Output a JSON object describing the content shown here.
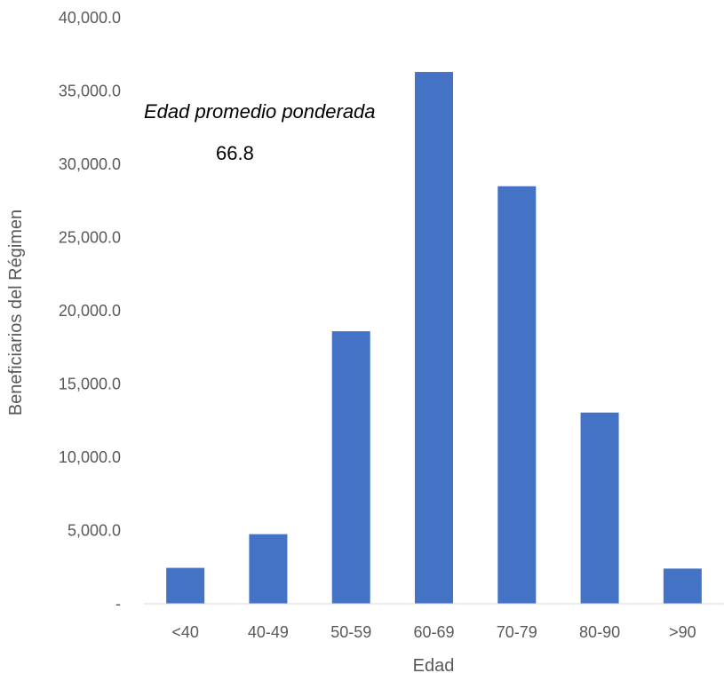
{
  "chart_data": {
    "type": "bar",
    "categories": [
      "<40",
      "40-49",
      "50-59",
      "60-69",
      "70-79",
      "80-90",
      ">90"
    ],
    "values": [
      2450,
      4750,
      18600,
      36300,
      28500,
      13050,
      2400
    ],
    "xlabel": "Edad",
    "ylabel": "Beneficiarios del Régimen",
    "ylim": [
      0,
      40000
    ],
    "yticks": [
      "-",
      "5,000.0",
      "10,000.0",
      "15,000.0",
      "20,000.0",
      "25,000.0",
      "30,000.0",
      "35,000.0",
      "40,000.0"
    ],
    "annotation": {
      "label": "Edad promedio ponderada",
      "value": "66.8"
    },
    "bar_color": "#4472C4",
    "grid": false,
    "legend": "none"
  }
}
